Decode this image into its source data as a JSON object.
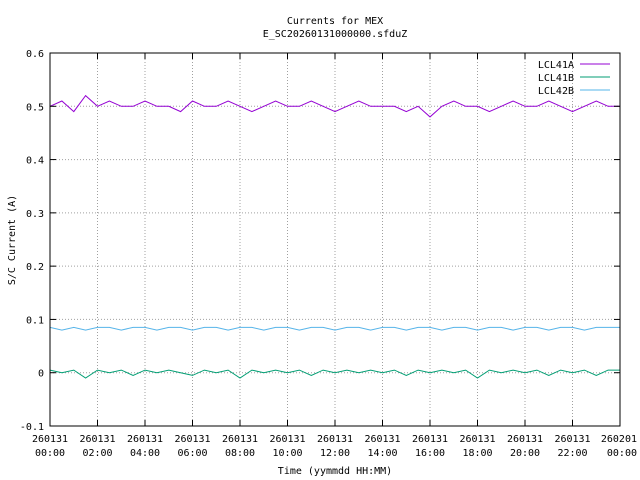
{
  "chart_data": {
    "type": "line",
    "title": "Currents for MEX",
    "subtitle": "E_SC20260131000000.sfduZ",
    "xlabel": "Time (yymmdd HH:MM)",
    "ylabel": "S/C Current (A)",
    "xlim": [
      0,
      24
    ],
    "ylim": [
      -0.1,
      0.6
    ],
    "y_ticks": [
      -0.1,
      0,
      0.1,
      0.2,
      0.3,
      0.4,
      0.5,
      0.6
    ],
    "y_tick_labels": [
      "-0.1",
      "0",
      "0.1",
      "0.2",
      "0.3",
      "0.4",
      "0.5",
      "0.6"
    ],
    "x_ticks": [
      {
        "hours": 0,
        "date": "260131",
        "time": "00:00"
      },
      {
        "hours": 2,
        "date": "260131",
        "time": "02:00"
      },
      {
        "hours": 4,
        "date": "260131",
        "time": "04:00"
      },
      {
        "hours": 6,
        "date": "260131",
        "time": "06:00"
      },
      {
        "hours": 8,
        "date": "260131",
        "time": "08:00"
      },
      {
        "hours": 10,
        "date": "260131",
        "time": "10:00"
      },
      {
        "hours": 12,
        "date": "260131",
        "time": "12:00"
      },
      {
        "hours": 14,
        "date": "260131",
        "time": "14:00"
      },
      {
        "hours": 16,
        "date": "260131",
        "time": "16:00"
      },
      {
        "hours": 18,
        "date": "260131",
        "time": "18:00"
      },
      {
        "hours": 20,
        "date": "260131",
        "time": "20:00"
      },
      {
        "hours": 22,
        "date": "260131",
        "time": "22:00"
      },
      {
        "hours": 24,
        "date": "260201",
        "time": "00:00"
      }
    ],
    "grid": true,
    "legend_position": "top-right",
    "series": [
      {
        "name": "LCL41A",
        "color": "#9400d3",
        "x": [
          0,
          0.5,
          1,
          1.5,
          2,
          2.5,
          3,
          3.5,
          4,
          4.5,
          5,
          5.5,
          6,
          6.5,
          7,
          7.5,
          8,
          8.5,
          9,
          9.5,
          10,
          10.5,
          11,
          11.5,
          12,
          12.5,
          13,
          13.5,
          14,
          14.5,
          15,
          15.5,
          16,
          16.5,
          17,
          17.5,
          18,
          18.5,
          19,
          19.5,
          20,
          20.5,
          21,
          21.5,
          22,
          22.5,
          23,
          23.5,
          24
        ],
        "y": [
          0.5,
          0.51,
          0.49,
          0.52,
          0.5,
          0.51,
          0.5,
          0.5,
          0.51,
          0.5,
          0.5,
          0.49,
          0.51,
          0.5,
          0.5,
          0.51,
          0.5,
          0.49,
          0.5,
          0.51,
          0.5,
          0.5,
          0.51,
          0.5,
          0.49,
          0.5,
          0.51,
          0.5,
          0.5,
          0.5,
          0.49,
          0.5,
          0.48,
          0.5,
          0.51,
          0.5,
          0.5,
          0.49,
          0.5,
          0.51,
          0.5,
          0.5,
          0.51,
          0.5,
          0.49,
          0.5,
          0.51,
          0.5,
          0.5
        ]
      },
      {
        "name": "LCL41B",
        "color": "#009e73",
        "x": [
          0,
          0.5,
          1,
          1.5,
          2,
          2.5,
          3,
          3.5,
          4,
          4.5,
          5,
          5.5,
          6,
          6.5,
          7,
          7.5,
          8,
          8.5,
          9,
          9.5,
          10,
          10.5,
          11,
          11.5,
          12,
          12.5,
          13,
          13.5,
          14,
          14.5,
          15,
          15.5,
          16,
          16.5,
          17,
          17.5,
          18,
          18.5,
          19,
          19.5,
          20,
          20.5,
          21,
          21.5,
          22,
          22.5,
          23,
          23.5,
          24
        ],
        "y": [
          0.005,
          0.0,
          0.005,
          -0.01,
          0.005,
          0.0,
          0.005,
          -0.005,
          0.005,
          0.0,
          0.005,
          0.0,
          -0.005,
          0.005,
          0.0,
          0.005,
          -0.01,
          0.005,
          0.0,
          0.005,
          0.0,
          0.005,
          -0.005,
          0.005,
          0.0,
          0.005,
          0.0,
          0.005,
          0.0,
          0.005,
          -0.005,
          0.005,
          0.0,
          0.005,
          0.0,
          0.005,
          -0.01,
          0.005,
          0.0,
          0.005,
          0.0,
          0.005,
          -0.005,
          0.005,
          0.0,
          0.005,
          -0.005,
          0.005,
          0.005
        ]
      },
      {
        "name": "LCL42B",
        "color": "#56b4e9",
        "x": [
          0,
          0.5,
          1,
          1.5,
          2,
          2.5,
          3,
          3.5,
          4,
          4.5,
          5,
          5.5,
          6,
          6.5,
          7,
          7.5,
          8,
          8.5,
          9,
          9.5,
          10,
          10.5,
          11,
          11.5,
          12,
          12.5,
          13,
          13.5,
          14,
          14.5,
          15,
          15.5,
          16,
          16.5,
          17,
          17.5,
          18,
          18.5,
          19,
          19.5,
          20,
          20.5,
          21,
          21.5,
          22,
          22.5,
          23,
          23.5,
          24
        ],
        "y": [
          0.085,
          0.08,
          0.085,
          0.08,
          0.085,
          0.085,
          0.08,
          0.085,
          0.085,
          0.08,
          0.085,
          0.085,
          0.08,
          0.085,
          0.085,
          0.08,
          0.085,
          0.085,
          0.08,
          0.085,
          0.085,
          0.08,
          0.085,
          0.085,
          0.08,
          0.085,
          0.085,
          0.08,
          0.085,
          0.085,
          0.08,
          0.085,
          0.085,
          0.08,
          0.085,
          0.085,
          0.08,
          0.085,
          0.085,
          0.08,
          0.085,
          0.085,
          0.08,
          0.085,
          0.085,
          0.08,
          0.085,
          0.085,
          0.085
        ]
      }
    ]
  }
}
